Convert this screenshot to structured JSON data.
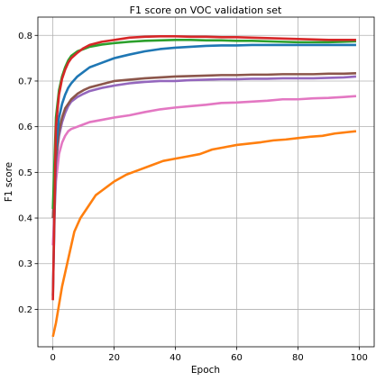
{
  "chart_data": {
    "type": "line",
    "title": "F1 score on VOC validation set",
    "xlabel": "Epoch",
    "ylabel": "F1 score",
    "xlim": [
      -4.9,
      104.9
    ],
    "ylim": [
      0.118,
      0.84
    ],
    "xticks": [
      0,
      20,
      40,
      60,
      80,
      100
    ],
    "yticks": [
      0.2,
      0.3,
      0.4,
      0.5,
      0.6,
      0.7,
      0.8
    ],
    "grid": true,
    "legend": "none",
    "series": [
      {
        "color": "#ff7f0e",
        "points": [
          [
            0,
            0.14
          ],
          [
            1,
            0.17
          ],
          [
            2,
            0.21
          ],
          [
            3,
            0.25
          ],
          [
            4,
            0.28
          ],
          [
            5,
            0.31
          ],
          [
            6,
            0.34
          ],
          [
            7,
            0.37
          ],
          [
            8,
            0.385
          ],
          [
            9,
            0.4
          ],
          [
            10,
            0.41
          ],
          [
            12,
            0.43
          ],
          [
            14,
            0.45
          ],
          [
            16,
            0.46
          ],
          [
            18,
            0.47
          ],
          [
            20,
            0.48
          ],
          [
            24,
            0.495
          ],
          [
            28,
            0.505
          ],
          [
            32,
            0.515
          ],
          [
            36,
            0.525
          ],
          [
            40,
            0.53
          ],
          [
            44,
            0.535
          ],
          [
            48,
            0.54
          ],
          [
            52,
            0.55
          ],
          [
            56,
            0.555
          ],
          [
            60,
            0.56
          ],
          [
            64,
            0.563
          ],
          [
            68,
            0.566
          ],
          [
            72,
            0.57
          ],
          [
            76,
            0.572
          ],
          [
            80,
            0.575
          ],
          [
            84,
            0.578
          ],
          [
            88,
            0.58
          ],
          [
            92,
            0.585
          ],
          [
            96,
            0.588
          ],
          [
            99,
            0.59
          ]
        ]
      },
      {
        "color": "#e377c2",
        "points": [
          [
            0,
            0.34
          ],
          [
            1,
            0.48
          ],
          [
            2,
            0.54
          ],
          [
            3,
            0.565
          ],
          [
            4,
            0.58
          ],
          [
            5,
            0.59
          ],
          [
            6,
            0.595
          ],
          [
            8,
            0.6
          ],
          [
            10,
            0.605
          ],
          [
            12,
            0.61
          ],
          [
            16,
            0.615
          ],
          [
            20,
            0.62
          ],
          [
            25,
            0.625
          ],
          [
            30,
            0.632
          ],
          [
            35,
            0.638
          ],
          [
            40,
            0.642
          ],
          [
            45,
            0.645
          ],
          [
            50,
            0.648
          ],
          [
            55,
            0.652
          ],
          [
            60,
            0.653
          ],
          [
            65,
            0.655
          ],
          [
            70,
            0.657
          ],
          [
            75,
            0.66
          ],
          [
            80,
            0.66
          ],
          [
            85,
            0.662
          ],
          [
            90,
            0.663
          ],
          [
            95,
            0.665
          ],
          [
            99,
            0.667
          ]
        ]
      },
      {
        "color": "#9467bd",
        "points": [
          [
            0,
            0.4
          ],
          [
            1,
            0.52
          ],
          [
            2,
            0.58
          ],
          [
            3,
            0.61
          ],
          [
            4,
            0.63
          ],
          [
            5,
            0.645
          ],
          [
            6,
            0.655
          ],
          [
            8,
            0.665
          ],
          [
            10,
            0.672
          ],
          [
            12,
            0.678
          ],
          [
            16,
            0.685
          ],
          [
            20,
            0.69
          ],
          [
            25,
            0.695
          ],
          [
            30,
            0.698
          ],
          [
            35,
            0.7
          ],
          [
            40,
            0.7
          ],
          [
            45,
            0.702
          ],
          [
            50,
            0.703
          ],
          [
            55,
            0.704
          ],
          [
            60,
            0.704
          ],
          [
            65,
            0.705
          ],
          [
            70,
            0.705
          ],
          [
            75,
            0.706
          ],
          [
            80,
            0.706
          ],
          [
            85,
            0.706
          ],
          [
            90,
            0.707
          ],
          [
            95,
            0.708
          ],
          [
            99,
            0.71
          ]
        ]
      },
      {
        "color": "#8c564b",
        "points": [
          [
            0,
            0.4
          ],
          [
            1,
            0.53
          ],
          [
            2,
            0.59
          ],
          [
            3,
            0.62
          ],
          [
            4,
            0.64
          ],
          [
            5,
            0.65
          ],
          [
            6,
            0.66
          ],
          [
            8,
            0.672
          ],
          [
            10,
            0.68
          ],
          [
            12,
            0.686
          ],
          [
            16,
            0.693
          ],
          [
            20,
            0.7
          ],
          [
            25,
            0.703
          ],
          [
            30,
            0.706
          ],
          [
            35,
            0.708
          ],
          [
            40,
            0.71
          ],
          [
            45,
            0.711
          ],
          [
            50,
            0.712
          ],
          [
            55,
            0.713
          ],
          [
            60,
            0.713
          ],
          [
            65,
            0.714
          ],
          [
            70,
            0.714
          ],
          [
            75,
            0.715
          ],
          [
            80,
            0.715
          ],
          [
            85,
            0.715
          ],
          [
            90,
            0.716
          ],
          [
            95,
            0.716
          ],
          [
            99,
            0.717
          ]
        ]
      },
      {
        "color": "#1f77b4",
        "points": [
          [
            0,
            0.23
          ],
          [
            1,
            0.55
          ],
          [
            2,
            0.62
          ],
          [
            3,
            0.65
          ],
          [
            4,
            0.67
          ],
          [
            5,
            0.685
          ],
          [
            6,
            0.695
          ],
          [
            8,
            0.71
          ],
          [
            10,
            0.72
          ],
          [
            12,
            0.73
          ],
          [
            16,
            0.74
          ],
          [
            20,
            0.75
          ],
          [
            25,
            0.758
          ],
          [
            30,
            0.765
          ],
          [
            35,
            0.77
          ],
          [
            40,
            0.773
          ],
          [
            45,
            0.775
          ],
          [
            50,
            0.777
          ],
          [
            55,
            0.778
          ],
          [
            60,
            0.778
          ],
          [
            65,
            0.779
          ],
          [
            70,
            0.779
          ],
          [
            75,
            0.779
          ],
          [
            80,
            0.779
          ],
          [
            85,
            0.779
          ],
          [
            90,
            0.779
          ],
          [
            95,
            0.779
          ],
          [
            99,
            0.779
          ]
        ]
      },
      {
        "color": "#2ca02c",
        "points": [
          [
            0,
            0.42
          ],
          [
            1,
            0.62
          ],
          [
            2,
            0.68
          ],
          [
            3,
            0.71
          ],
          [
            4,
            0.73
          ],
          [
            5,
            0.745
          ],
          [
            6,
            0.755
          ],
          [
            8,
            0.765
          ],
          [
            10,
            0.77
          ],
          [
            12,
            0.775
          ],
          [
            16,
            0.78
          ],
          [
            20,
            0.783
          ],
          [
            25,
            0.786
          ],
          [
            30,
            0.788
          ],
          [
            35,
            0.789
          ],
          [
            40,
            0.79
          ],
          [
            45,
            0.79
          ],
          [
            50,
            0.789
          ],
          [
            55,
            0.789
          ],
          [
            60,
            0.788
          ],
          [
            65,
            0.788
          ],
          [
            70,
            0.787
          ],
          [
            75,
            0.786
          ],
          [
            80,
            0.785
          ],
          [
            85,
            0.785
          ],
          [
            90,
            0.785
          ],
          [
            95,
            0.786
          ],
          [
            99,
            0.787
          ]
        ]
      },
      {
        "color": "#d62728",
        "points": [
          [
            0,
            0.22
          ],
          [
            1,
            0.6
          ],
          [
            2,
            0.67
          ],
          [
            3,
            0.705
          ],
          [
            4,
            0.725
          ],
          [
            5,
            0.74
          ],
          [
            6,
            0.75
          ],
          [
            8,
            0.762
          ],
          [
            10,
            0.772
          ],
          [
            12,
            0.779
          ],
          [
            16,
            0.786
          ],
          [
            20,
            0.79
          ],
          [
            25,
            0.795
          ],
          [
            30,
            0.797
          ],
          [
            35,
            0.798
          ],
          [
            40,
            0.798
          ],
          [
            45,
            0.797
          ],
          [
            50,
            0.797
          ],
          [
            55,
            0.796
          ],
          [
            60,
            0.796
          ],
          [
            65,
            0.795
          ],
          [
            70,
            0.794
          ],
          [
            75,
            0.793
          ],
          [
            80,
            0.792
          ],
          [
            85,
            0.791
          ],
          [
            90,
            0.79
          ],
          [
            95,
            0.79
          ],
          [
            99,
            0.79
          ]
        ]
      }
    ]
  }
}
